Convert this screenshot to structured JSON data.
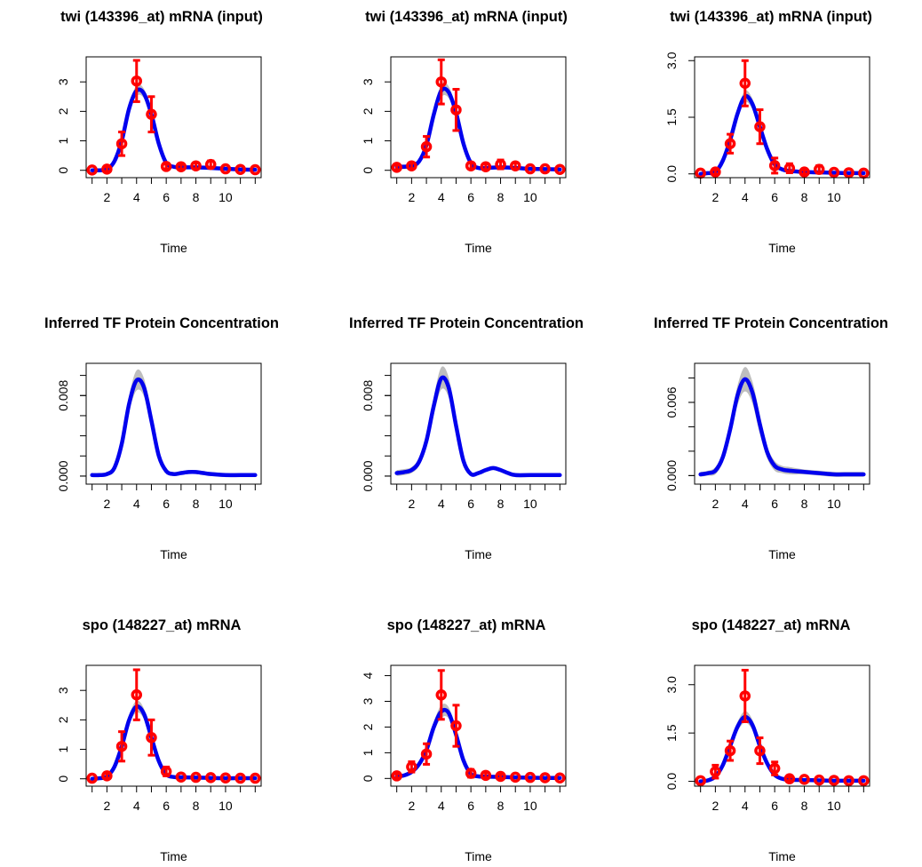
{
  "colors": {
    "fit_line": "#0000ee",
    "confidence_band": "#bebebe",
    "observed_points": "#ff0000",
    "axes": "#000000",
    "background": "#ffffff"
  },
  "chart_data": [
    {
      "type": "line",
      "title": "twi (143396_at) mRNA (input)",
      "xlabel": "Time",
      "ylabel": "",
      "xlim": [
        0.6,
        12.4
      ],
      "ylim": [
        -0.25,
        3.85
      ],
      "xticks": [
        2,
        4,
        6,
        8,
        10
      ],
      "yticks": [
        "0",
        "1",
        "2",
        "3"
      ],
      "series": [
        {
          "x": [
            1,
            2,
            3,
            4,
            5,
            6,
            7,
            8,
            9,
            10,
            11,
            12
          ],
          "values": [
            0.01,
            0.04,
            0.9,
            3.03,
            1.9,
            0.13,
            0.12,
            0.15,
            0.2,
            0.05,
            0.03,
            0.02
          ],
          "error": [
            0.05,
            0.08,
            0.4,
            0.7,
            0.6,
            0.08,
            0.08,
            0.1,
            0.12,
            0.05,
            0.04,
            0.04
          ]
        },
        {
          "x": [
            1,
            1.5,
            2,
            2.5,
            3,
            3.5,
            4,
            4.5,
            5,
            5.5,
            6,
            6.5,
            7,
            8,
            9,
            10,
            11,
            12
          ],
          "values": [
            0.0,
            0.0,
            0.04,
            0.3,
            1.0,
            2.1,
            2.7,
            2.6,
            1.9,
            0.9,
            0.25,
            0.12,
            0.1,
            0.1,
            0.08,
            0.05,
            0.03,
            0.02
          ],
          "band": [
            0.03,
            0.03,
            0.05,
            0.08,
            0.12,
            0.15,
            0.18,
            0.16,
            0.14,
            0.1,
            0.06,
            0.04,
            0.04,
            0.04,
            0.04,
            0.04,
            0.04,
            0.04
          ]
        }
      ]
    },
    {
      "type": "line",
      "title": "twi (143396_at) mRNA (input)",
      "xlabel": "Time",
      "ylabel": "",
      "xlim": [
        0.6,
        12.4
      ],
      "ylim": [
        -0.25,
        3.85
      ],
      "xticks": [
        2,
        4,
        6,
        8,
        10
      ],
      "yticks": [
        "0",
        "1",
        "2",
        "3"
      ],
      "series": [
        {
          "x": [
            1,
            2,
            3,
            4,
            5,
            6,
            7,
            8,
            9,
            10,
            11,
            12
          ],
          "values": [
            0.1,
            0.15,
            0.8,
            3.0,
            2.05,
            0.15,
            0.12,
            0.2,
            0.15,
            0.05,
            0.05,
            0.03
          ],
          "error": [
            0.08,
            0.1,
            0.35,
            0.75,
            0.7,
            0.1,
            0.1,
            0.15,
            0.1,
            0.06,
            0.05,
            0.04
          ]
        },
        {
          "x": [
            1,
            1.5,
            2,
            2.5,
            3,
            3.5,
            4,
            4.5,
            5,
            5.5,
            6,
            6.5,
            7,
            8,
            9,
            10,
            11,
            12
          ],
          "values": [
            0.12,
            0.12,
            0.15,
            0.3,
            0.85,
            1.9,
            2.7,
            2.65,
            1.95,
            0.9,
            0.25,
            0.08,
            0.08,
            0.1,
            0.08,
            0.05,
            0.04,
            0.03
          ],
          "band": [
            0.08,
            0.08,
            0.08,
            0.1,
            0.12,
            0.15,
            0.22,
            0.2,
            0.15,
            0.1,
            0.06,
            0.05,
            0.05,
            0.05,
            0.05,
            0.05,
            0.05,
            0.05
          ]
        }
      ]
    },
    {
      "type": "line",
      "title": "twi (143396_at) mRNA (input)",
      "xlabel": "Time",
      "ylabel": "",
      "xlim": [
        0.6,
        12.4
      ],
      "ylim": [
        -0.1,
        3.1
      ],
      "xticks": [
        2,
        4,
        6,
        8,
        10
      ],
      "yticks": [
        "0.0",
        "1.5",
        "3.0"
      ],
      "series": [
        {
          "x": [
            1,
            2,
            3,
            4,
            5,
            6,
            7,
            8,
            9,
            10,
            11,
            12
          ],
          "values": [
            0.02,
            0.05,
            0.8,
            2.4,
            1.25,
            0.22,
            0.15,
            0.05,
            0.12,
            0.04,
            0.03,
            0.02
          ],
          "error": [
            0.04,
            0.06,
            0.25,
            0.6,
            0.45,
            0.2,
            0.12,
            0.05,
            0.1,
            0.04,
            0.04,
            0.04
          ]
        },
        {
          "x": [
            1,
            1.5,
            2,
            2.5,
            3,
            3.5,
            4,
            4.5,
            5,
            5.5,
            6,
            6.5,
            7,
            8,
            9,
            10,
            11,
            12
          ],
          "values": [
            0.0,
            0.02,
            0.05,
            0.35,
            0.9,
            1.6,
            2.05,
            1.85,
            1.25,
            0.65,
            0.25,
            0.12,
            0.08,
            0.05,
            0.04,
            0.03,
            0.02,
            0.02
          ],
          "band": [
            0.03,
            0.03,
            0.04,
            0.06,
            0.08,
            0.1,
            0.15,
            0.14,
            0.12,
            0.08,
            0.06,
            0.05,
            0.04,
            0.04,
            0.04,
            0.04,
            0.04,
            0.04
          ]
        }
      ]
    },
    {
      "type": "line",
      "title": "Inferred TF Protein Concentration",
      "xlabel": "Time",
      "ylabel": "",
      "xlim": [
        0.6,
        12.4
      ],
      "ylim": [
        -0.0008,
        0.0112
      ],
      "xticks": [
        2,
        4,
        6,
        8,
        10
      ],
      "yticks": [
        "0.000",
        "0.008"
      ],
      "minor_yticks": [
        0.0,
        0.002,
        0.004,
        0.006,
        0.008,
        0.01
      ],
      "series": [
        {
          "x": [
            1,
            1.5,
            2,
            2.5,
            3,
            3.5,
            4,
            4.5,
            5,
            5.5,
            6,
            6.5,
            7,
            7.5,
            8,
            8.5,
            9,
            10,
            11,
            12
          ],
          "values": [
            0.0001,
            0.0001,
            0.0002,
            0.0008,
            0.0032,
            0.0072,
            0.0095,
            0.0088,
            0.0055,
            0.002,
            0.0005,
            0.0002,
            0.0003,
            0.0004,
            0.0004,
            0.0003,
            0.0002,
            0.0001,
            0.0001,
            0.0001
          ],
          "band": [
            0.0002,
            0.0002,
            0.0002,
            0.0003,
            0.0005,
            0.0008,
            0.001,
            0.0009,
            0.0007,
            0.0004,
            0.0002,
            0.0002,
            0.0002,
            0.0002,
            0.0002,
            0.0002,
            0.0002,
            0.0002,
            0.0002,
            0.0002
          ]
        }
      ]
    },
    {
      "type": "line",
      "title": "Inferred TF Protein Concentration",
      "xlabel": "Time",
      "ylabel": "",
      "xlim": [
        0.6,
        12.4
      ],
      "ylim": [
        -0.0008,
        0.0112
      ],
      "xticks": [
        2,
        4,
        6,
        8,
        10
      ],
      "yticks": [
        "0.000",
        "0.008"
      ],
      "minor_yticks": [
        0.0,
        0.002,
        0.004,
        0.006,
        0.008,
        0.01
      ],
      "series": [
        {
          "x": [
            1,
            1.5,
            2,
            2.5,
            3,
            3.5,
            4,
            4.5,
            5,
            5.5,
            6,
            6.5,
            7,
            7.5,
            8,
            8.5,
            9,
            10,
            11,
            12
          ],
          "values": [
            0.0003,
            0.0004,
            0.0006,
            0.0014,
            0.0035,
            0.007,
            0.0097,
            0.0088,
            0.005,
            0.0015,
            0.0002,
            0.0003,
            0.0006,
            0.0008,
            0.0006,
            0.0003,
            0.0001,
            0.0001,
            0.0001,
            0.0001
          ],
          "band": [
            0.0003,
            0.0003,
            0.0003,
            0.0004,
            0.0006,
            0.0009,
            0.0011,
            0.001,
            0.0008,
            0.0004,
            0.0002,
            0.0002,
            0.0002,
            0.0002,
            0.0002,
            0.0002,
            0.0002,
            0.0002,
            0.0002,
            0.0002
          ]
        }
      ]
    },
    {
      "type": "line",
      "title": "Inferred TF Protein Concentration",
      "xlabel": "Time",
      "ylabel": "",
      "xlim": [
        0.6,
        12.4
      ],
      "ylim": [
        -0.0007,
        0.0092
      ],
      "xticks": [
        2,
        4,
        6,
        8,
        10
      ],
      "yticks": [
        "0.000",
        "0.006"
      ],
      "minor_yticks": [
        0.0,
        0.002,
        0.004,
        0.006,
        0.008
      ],
      "series": [
        {
          "x": [
            1,
            1.5,
            2,
            2.5,
            3,
            3.5,
            4,
            4.5,
            5,
            5.5,
            6,
            6.5,
            7,
            8,
            9,
            10,
            11,
            12
          ],
          "values": [
            0.0001,
            0.0002,
            0.0004,
            0.0015,
            0.0038,
            0.0066,
            0.0079,
            0.0068,
            0.0042,
            0.0019,
            0.0008,
            0.0005,
            0.0004,
            0.0003,
            0.0002,
            0.0001,
            0.0001,
            0.0001
          ],
          "band": [
            0.0002,
            0.0002,
            0.0003,
            0.0004,
            0.0006,
            0.0008,
            0.001,
            0.0009,
            0.0008,
            0.0005,
            0.0004,
            0.0003,
            0.0003,
            0.0002,
            0.0002,
            0.0002,
            0.0002,
            0.0002
          ]
        }
      ]
    },
    {
      "type": "line",
      "title": "spo (148227_at) mRNA",
      "xlabel": "Time",
      "ylabel": "",
      "xlim": [
        0.6,
        12.4
      ],
      "ylim": [
        -0.25,
        3.85
      ],
      "xticks": [
        2,
        4,
        6,
        8,
        10
      ],
      "yticks": [
        "0",
        "1",
        "2",
        "3"
      ],
      "series": [
        {
          "x": [
            1,
            2,
            3,
            4,
            5,
            6,
            7,
            8,
            9,
            10,
            11,
            12
          ],
          "values": [
            0.02,
            0.1,
            1.1,
            2.85,
            1.4,
            0.25,
            0.06,
            0.05,
            0.04,
            0.03,
            0.02,
            0.02
          ],
          "error": [
            0.04,
            0.08,
            0.5,
            0.85,
            0.6,
            0.15,
            0.06,
            0.05,
            0.04,
            0.04,
            0.04,
            0.04
          ]
        },
        {
          "x": [
            1,
            1.5,
            2,
            2.5,
            3,
            3.5,
            4,
            4.5,
            5,
            5.5,
            6,
            6.5,
            7,
            8,
            9,
            10,
            11,
            12
          ],
          "values": [
            0.0,
            0.02,
            0.08,
            0.4,
            1.1,
            2.0,
            2.45,
            2.2,
            1.4,
            0.6,
            0.15,
            0.06,
            0.05,
            0.04,
            0.03,
            0.02,
            0.02,
            0.02
          ],
          "band": [
            0.03,
            0.03,
            0.05,
            0.08,
            0.12,
            0.16,
            0.2,
            0.18,
            0.14,
            0.1,
            0.06,
            0.04,
            0.04,
            0.04,
            0.04,
            0.04,
            0.04,
            0.04
          ]
        }
      ]
    },
    {
      "type": "line",
      "title": "spo (148227_at) mRNA",
      "xlabel": "Time",
      "ylabel": "",
      "xlim": [
        0.6,
        12.4
      ],
      "ylim": [
        -0.3,
        4.4
      ],
      "xticks": [
        2,
        4,
        6,
        8,
        10
      ],
      "yticks": [
        "0",
        "1",
        "2",
        "3",
        "4"
      ],
      "series": [
        {
          "x": [
            1,
            2,
            3,
            4,
            5,
            6,
            7,
            8,
            9,
            10,
            11,
            12
          ],
          "values": [
            0.1,
            0.45,
            0.95,
            3.25,
            2.05,
            0.2,
            0.12,
            0.08,
            0.05,
            0.04,
            0.03,
            0.02
          ],
          "error": [
            0.08,
            0.2,
            0.4,
            0.95,
            0.8,
            0.15,
            0.1,
            0.08,
            0.05,
            0.04,
            0.04,
            0.04
          ]
        },
        {
          "x": [
            1,
            1.5,
            2,
            2.5,
            3,
            3.5,
            4,
            4.5,
            5,
            5.5,
            6,
            6.5,
            7,
            8,
            9,
            10,
            11,
            12
          ],
          "values": [
            0.08,
            0.12,
            0.25,
            0.55,
            1.1,
            2.0,
            2.6,
            2.55,
            1.7,
            0.7,
            0.18,
            0.08,
            0.07,
            0.06,
            0.04,
            0.03,
            0.02,
            0.02
          ],
          "band": [
            0.05,
            0.05,
            0.06,
            0.1,
            0.15,
            0.2,
            0.25,
            0.22,
            0.18,
            0.12,
            0.06,
            0.05,
            0.05,
            0.05,
            0.05,
            0.05,
            0.05,
            0.05
          ]
        }
      ]
    },
    {
      "type": "line",
      "title": "spo (148227_at) mRNA",
      "xlabel": "Time",
      "ylabel": "",
      "xlim": [
        0.6,
        12.4
      ],
      "ylim": [
        -0.15,
        3.6
      ],
      "xticks": [
        2,
        4,
        6,
        8,
        10
      ],
      "yticks": [
        "0.0",
        "1.5",
        "3.0"
      ],
      "series": [
        {
          "x": [
            1,
            2,
            3,
            4,
            5,
            6,
            7,
            8,
            9,
            10,
            11,
            12
          ],
          "values": [
            0.02,
            0.3,
            0.95,
            2.65,
            0.95,
            0.4,
            0.08,
            0.06,
            0.04,
            0.03,
            0.02,
            0.02
          ],
          "error": [
            0.04,
            0.2,
            0.3,
            0.8,
            0.4,
            0.2,
            0.06,
            0.05,
            0.04,
            0.04,
            0.04,
            0.04
          ]
        },
        {
          "x": [
            1,
            1.5,
            2,
            2.5,
            3,
            3.5,
            4,
            4.5,
            5,
            5.5,
            6,
            6.5,
            7,
            8,
            9,
            10,
            11,
            12
          ],
          "values": [
            0.0,
            0.03,
            0.15,
            0.5,
            1.1,
            1.7,
            2.0,
            1.75,
            1.1,
            0.55,
            0.2,
            0.08,
            0.05,
            0.04,
            0.03,
            0.02,
            0.02,
            0.02
          ],
          "band": [
            0.03,
            0.03,
            0.05,
            0.08,
            0.12,
            0.15,
            0.18,
            0.16,
            0.12,
            0.08,
            0.05,
            0.04,
            0.04,
            0.04,
            0.04,
            0.04,
            0.04,
            0.04
          ]
        }
      ]
    }
  ]
}
